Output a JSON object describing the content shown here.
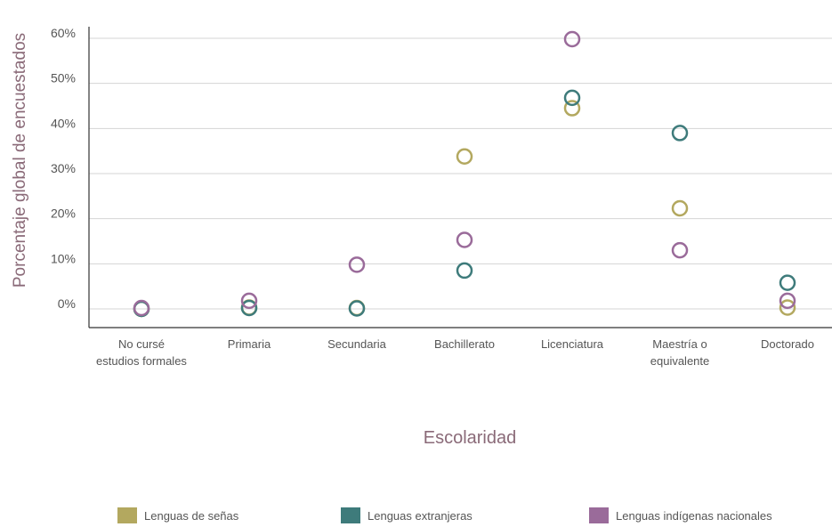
{
  "chart_data": {
    "type": "scatter",
    "ylabel": "Porcentaje global de encuestados",
    "xlabel": "Escolaridad",
    "ylim": [
      0,
      60
    ],
    "yticks": [
      "0%",
      "10%",
      "20%",
      "30%",
      "40%",
      "50%",
      "60%"
    ],
    "grid": true,
    "legend_position": "bottom",
    "categories": [
      [
        "No cursé",
        "estudios formales"
      ],
      [
        "Primaria"
      ],
      [
        "Secundaria"
      ],
      [
        "Bachillerato"
      ],
      [
        "Licenciatura"
      ],
      [
        "Maestría o",
        "equivalente"
      ],
      [
        "Doctorado"
      ]
    ],
    "series": [
      {
        "name": "Lenguas de señas",
        "color": "#b3a85f",
        "values": [
          0,
          0.3,
          0.2,
          33.8,
          44.5,
          22.3,
          0.3
        ]
      },
      {
        "name": "Lenguas extranjeras",
        "color": "#3e7b7b",
        "values": [
          0,
          0.2,
          0.1,
          8.5,
          46.8,
          39.0,
          5.8
        ]
      },
      {
        "name": "Lenguas indígenas nacionales",
        "color": "#9a6b9a",
        "values": [
          0.2,
          1.8,
          9.8,
          15.3,
          59.8,
          13.0,
          1.8
        ]
      }
    ]
  }
}
